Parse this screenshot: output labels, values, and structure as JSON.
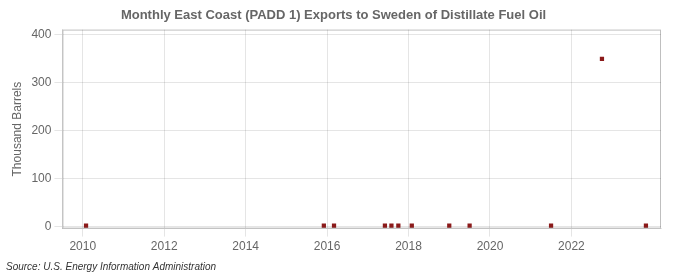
{
  "chart_data": {
    "type": "scatter",
    "title": "Monthly East Coast (PADD 1) Exports to Sweden of Distillate Fuel Oil",
    "y_label": "Thousand Barrels",
    "source": "Source: U.S. Energy Information Administration",
    "x": [
      2010.08,
      2015.92,
      2016.17,
      2017.42,
      2017.58,
      2017.75,
      2018.08,
      2019.0,
      2019.5,
      2021.5,
      2022.75,
      2023.83
    ],
    "values": [
      1,
      1,
      1,
      1,
      1,
      1,
      1,
      1,
      1,
      1,
      349,
      1
    ],
    "color": "#8b1a1a",
    "marker": "square",
    "xlim": [
      2009.5,
      2024.2
    ],
    "xticks": [
      2010,
      2012,
      2014,
      2016,
      2018,
      2020,
      2022
    ],
    "ylim": [
      -5,
      410
    ],
    "yticks": [
      0,
      100,
      200,
      300,
      400
    ],
    "grid": true
  }
}
